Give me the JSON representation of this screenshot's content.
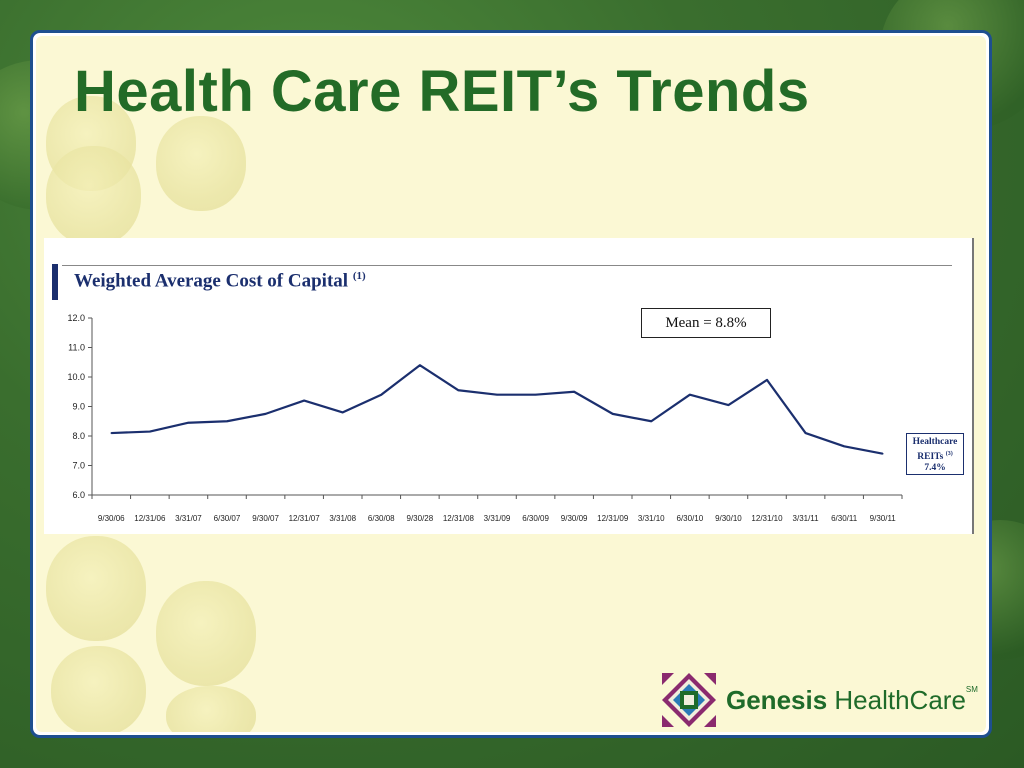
{
  "slide": {
    "title": "Health Care REIT’s Trends"
  },
  "chart_data": {
    "type": "line",
    "title": "Weighted Average Cost of Capital",
    "title_footnote": "(1)",
    "categories": [
      "9/30/06",
      "12/31/06",
      "3/31/07",
      "6/30/07",
      "9/30/07",
      "12/31/07",
      "3/31/08",
      "6/30/08",
      "9/30/28",
      "12/31/08",
      "3/31/09",
      "6/30/09",
      "9/30/09",
      "12/31/09",
      "3/31/10",
      "6/30/10",
      "9/30/10",
      "12/31/10",
      "3/31/11",
      "6/30/11",
      "9/30/11"
    ],
    "series": [
      {
        "values": [
          8.1,
          8.15,
          8.45,
          8.5,
          8.75,
          9.2,
          8.8,
          9.4,
          10.4,
          9.55,
          9.4,
          9.4,
          9.5,
          8.75,
          8.5,
          9.4,
          9.05,
          9.9,
          8.1,
          7.65,
          7.4
        ],
        "color": "#1b2f6e"
      }
    ],
    "ylim": [
      6.0,
      12.0
    ],
    "yticks": [
      "6.0",
      "7.0",
      "8.0",
      "9.0",
      "10.0",
      "11.0",
      "12.0"
    ],
    "grid": false,
    "annotations": {
      "mean": "Mean = 8.8%",
      "end_label_line1": "Healthcare",
      "end_label_line2": "REITs",
      "end_label_footnote": "(3)",
      "end_value": "7.4%"
    }
  },
  "logo": {
    "brand_bold": "Genesis",
    "brand_rest": " HealthCare",
    "mark": "SM"
  },
  "colors": {
    "title": "#236b27",
    "line": "#1b2f6e",
    "frame": "#1e4f8f",
    "slide_bg": "#fbf8d4"
  }
}
